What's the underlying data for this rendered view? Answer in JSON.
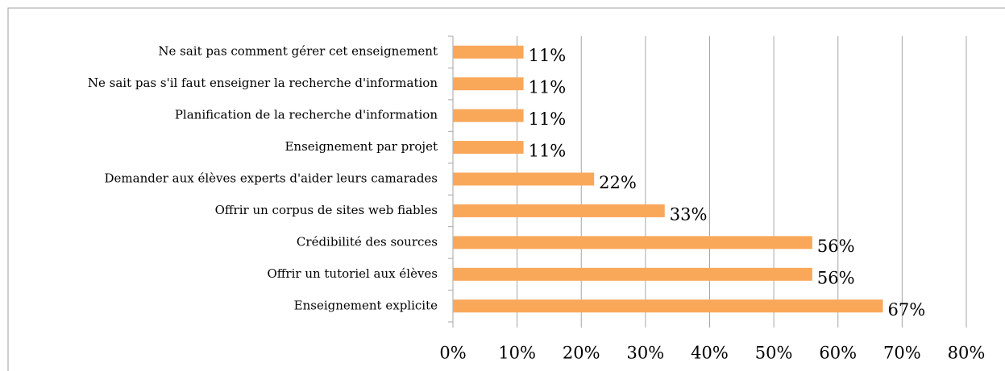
{
  "chart_data": {
    "type": "bar",
    "orientation": "horizontal",
    "categories": [
      "Ne sait pas comment gérer cet enseignement",
      "Ne sait pas s'il faut enseigner la recherche d'information",
      "Planification de la recherche d'information",
      "Enseignement par projet",
      "Demander aux élèves experts d'aider leurs camarades",
      "Offrir un corpus de sites web fiables",
      "Crédibilité des sources",
      "Offrir un tutoriel aux élèves",
      "Enseignement explicite"
    ],
    "values": [
      11,
      11,
      11,
      11,
      22,
      33,
      56,
      56,
      67
    ],
    "value_labels": [
      "11%",
      "11%",
      "11%",
      "11%",
      "22%",
      "33%",
      "56%",
      "56%",
      "67%"
    ],
    "color": "#f9a85a",
    "xlim": [
      0,
      80
    ],
    "xticks": [
      {
        "value": 0,
        "label": "0%"
      },
      {
        "value": 10,
        "label": "10%"
      },
      {
        "value": 20,
        "label": "20%"
      },
      {
        "value": 30,
        "label": "30%"
      },
      {
        "value": 40,
        "label": "40%"
      },
      {
        "value": 50,
        "label": "50%"
      },
      {
        "value": 60,
        "label": "60%"
      },
      {
        "value": 70,
        "label": "70%"
      },
      {
        "value": 80,
        "label": "80%"
      }
    ],
    "grid": true
  }
}
